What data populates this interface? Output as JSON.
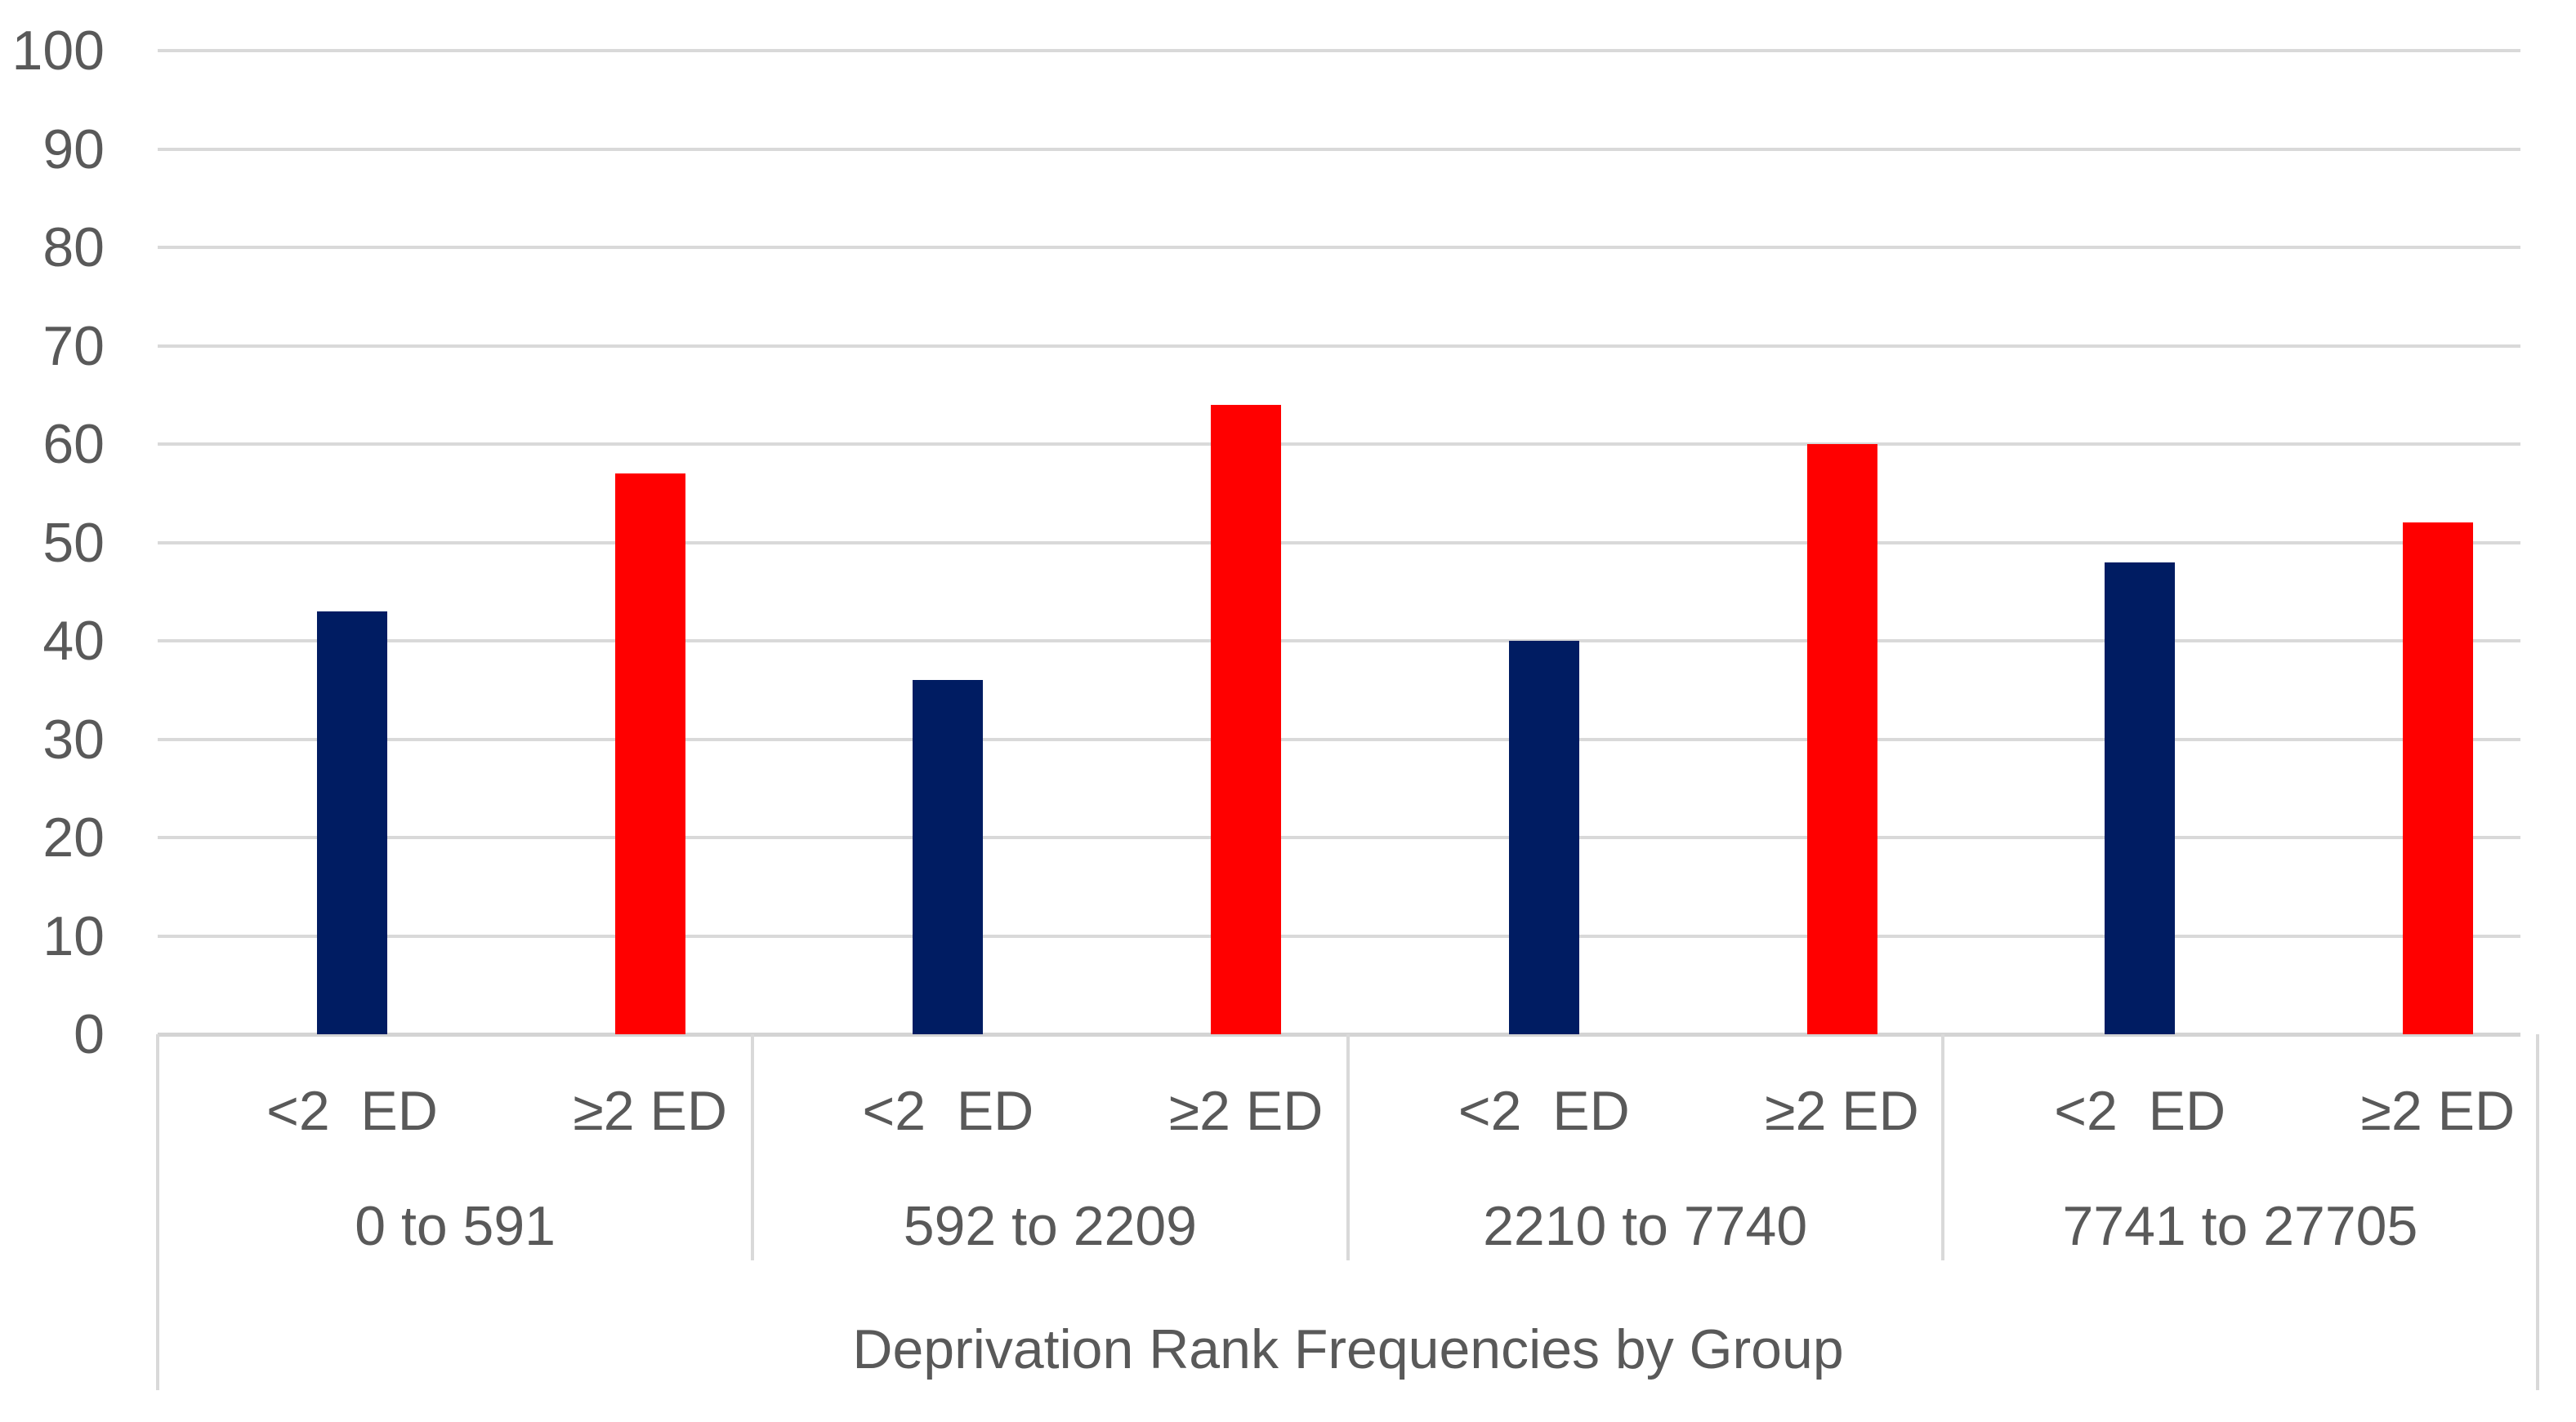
{
  "chart_data": {
    "type": "bar",
    "axis_title": "Deprivation Rank Frequencies by Group",
    "ylim": [
      0,
      100
    ],
    "ytick_step": 10,
    "ytick_labels": [
      "0",
      "10",
      "20",
      "30",
      "40",
      "50",
      "60",
      "70",
      "80",
      "90",
      "100"
    ],
    "grid": true,
    "legend": "none",
    "bar_labels": [
      "<2  ED",
      "≥2 ED"
    ],
    "categories": [
      "0 to 591",
      "592 to 2209",
      "2210 to 7740",
      "7741 to 27705"
    ],
    "series": [
      {
        "name": "<2 ED",
        "color": "#001C62",
        "values": [
          43,
          36,
          40,
          48
        ]
      },
      {
        "name": "≥2 ED",
        "color": "#FF0000",
        "values": [
          57,
          64,
          60,
          52
        ]
      }
    ],
    "groups": [
      {
        "label": "0 to 591",
        "bars": [
          {
            "label": "<2  ED",
            "value": 43,
            "color": "#001C62"
          },
          {
            "label": "≥2 ED",
            "value": 57,
            "color": "#FF0000"
          }
        ]
      },
      {
        "label": "592 to 2209",
        "bars": [
          {
            "label": "<2  ED",
            "value": 36,
            "color": "#001C62"
          },
          {
            "label": "≥2 ED",
            "value": 64,
            "color": "#FF0000"
          }
        ]
      },
      {
        "label": "2210 to 7740",
        "bars": [
          {
            "label": "<2  ED",
            "value": 40,
            "color": "#001C62"
          },
          {
            "label": "≥2 ED",
            "value": 60,
            "color": "#FF0000"
          }
        ]
      },
      {
        "label": "7741 to 27705",
        "bars": [
          {
            "label": "<2  ED",
            "value": 48,
            "color": "#001C62"
          },
          {
            "label": "≥2 ED",
            "value": 52,
            "color": "#FF0000"
          }
        ]
      }
    ],
    "colors": {
      "bar_navy": "#001C62",
      "bar_red": "#FF0000",
      "gridline": "#D9D9D9",
      "axis_line": "#D4D4D4",
      "text": "#595959"
    }
  }
}
